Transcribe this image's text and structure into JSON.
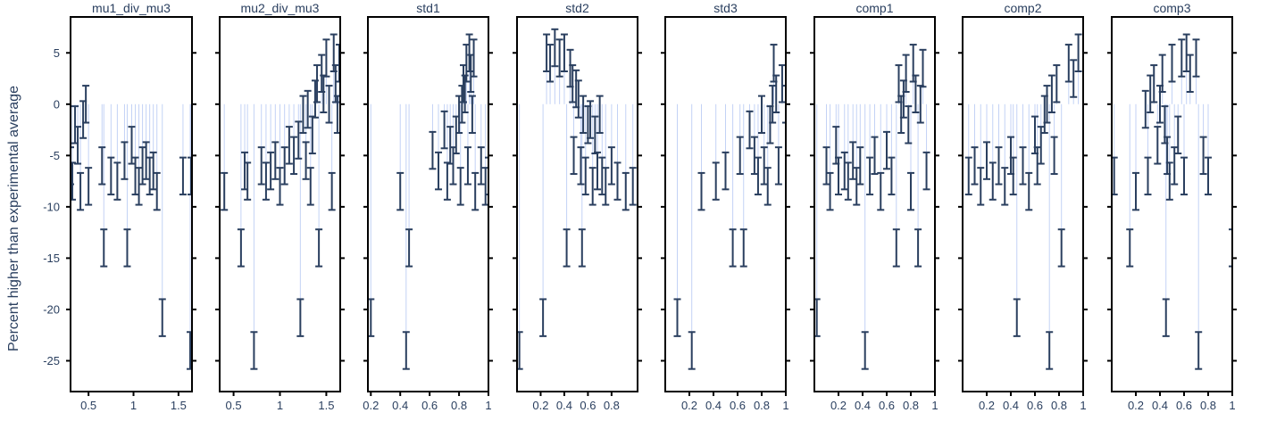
{
  "chart_data": {
    "type": "scatter",
    "ylabel": "Percent higher than experimental average",
    "ylim": [
      -28,
      8.5
    ],
    "yticks": [
      5,
      0,
      -5,
      -10,
      -15,
      -20,
      -25
    ],
    "colors": {
      "errorbar": "#2a3f5f",
      "stem": "#c3d2f5",
      "frame": "#000000"
    },
    "panels": [
      {
        "title": "mu1_div_mu3",
        "xlim": [
          0.3,
          1.65
        ],
        "xticks": [
          {
            "v": 0.5,
            "t": "0.5"
          },
          {
            "v": 1,
            "t": "1"
          },
          {
            "v": 1.5,
            "t": "1.5"
          }
        ],
        "points": [
          [
            0.3,
            -6
          ],
          [
            0.32,
            -7.5
          ],
          [
            0.35,
            -2
          ],
          [
            0.38,
            -4
          ],
          [
            0.41,
            -8.5
          ],
          [
            0.44,
            -1.5
          ],
          [
            0.47,
            0
          ],
          [
            0.5,
            -8
          ],
          [
            0.65,
            -6
          ],
          [
            0.67,
            -14
          ],
          [
            0.75,
            -7
          ],
          [
            0.82,
            -7.5
          ],
          [
            0.9,
            -5.5
          ],
          [
            0.93,
            -14
          ],
          [
            0.98,
            -4
          ],
          [
            1.02,
            -7
          ],
          [
            1.06,
            -8
          ],
          [
            1.1,
            -6
          ],
          [
            1.14,
            -5.5
          ],
          [
            1.18,
            -7
          ],
          [
            1.22,
            -6.5
          ],
          [
            1.26,
            -8.5
          ],
          [
            1.32,
            -20.8
          ],
          [
            1.55,
            -7
          ],
          [
            1.63,
            -24
          ],
          [
            1.64,
            -7
          ]
        ],
        "err": 1.8
      },
      {
        "title": "mu2_div_mu3",
        "xlim": [
          0.35,
          1.65
        ],
        "xticks": [
          {
            "v": 0.5,
            "t": "0.5"
          },
          {
            "v": 1,
            "t": "1"
          },
          {
            "v": 1.5,
            "t": "1.5"
          }
        ],
        "points": [
          [
            0.4,
            -8.5
          ],
          [
            0.58,
            -14
          ],
          [
            0.62,
            -6.5
          ],
          [
            0.65,
            -7.5
          ],
          [
            0.72,
            -24
          ],
          [
            0.8,
            -6
          ],
          [
            0.85,
            -7.5
          ],
          [
            0.9,
            -6.5
          ],
          [
            0.95,
            -5.5
          ],
          [
            1.0,
            -8
          ],
          [
            1.05,
            -6
          ],
          [
            1.1,
            -4
          ],
          [
            1.15,
            -5
          ],
          [
            1.2,
            -3.5
          ],
          [
            1.22,
            -20.8
          ],
          [
            1.25,
            -1
          ],
          [
            1.28,
            -5.5
          ],
          [
            1.3,
            -0.5
          ],
          [
            1.33,
            -8
          ],
          [
            1.35,
            -3
          ],
          [
            1.38,
            0.5
          ],
          [
            1.4,
            2
          ],
          [
            1.42,
            -14
          ],
          [
            1.45,
            3
          ],
          [
            1.47,
            1
          ],
          [
            1.5,
            4.5
          ],
          [
            1.53,
            0
          ],
          [
            1.56,
            -8.5
          ],
          [
            1.58,
            5
          ],
          [
            1.6,
            2
          ],
          [
            1.62,
            -1
          ],
          [
            1.64,
            4
          ]
        ],
        "err": 1.8
      },
      {
        "title": "std1",
        "xlim": [
          0.18,
          1.0
        ],
        "xticks": [
          {
            "v": 0.2,
            "t": "0.2"
          },
          {
            "v": 0.4,
            "t": "0.4"
          },
          {
            "v": 0.6,
            "t": "0.6"
          },
          {
            "v": 0.8,
            "t": "0.8"
          },
          {
            "v": 1,
            "t": "1"
          }
        ],
        "points": [
          [
            0.2,
            -20.8
          ],
          [
            0.4,
            -8.5
          ],
          [
            0.44,
            -24
          ],
          [
            0.46,
            -14
          ],
          [
            0.62,
            -4.5
          ],
          [
            0.66,
            -6.5
          ],
          [
            0.7,
            -2.5
          ],
          [
            0.72,
            -7.5
          ],
          [
            0.74,
            -4
          ],
          [
            0.76,
            -6
          ],
          [
            0.78,
            -3
          ],
          [
            0.8,
            -1
          ],
          [
            0.81,
            -8
          ],
          [
            0.82,
            0
          ],
          [
            0.83,
            2
          ],
          [
            0.84,
            1
          ],
          [
            0.85,
            4
          ],
          [
            0.86,
            -6
          ],
          [
            0.87,
            5
          ],
          [
            0.88,
            3
          ],
          [
            0.89,
            -1
          ],
          [
            0.9,
            4.5
          ],
          [
            0.91,
            -8.5
          ],
          [
            0.95,
            -6
          ],
          [
            0.98,
            -8
          ],
          [
            1.0,
            -7
          ]
        ],
        "err": 1.8
      },
      {
        "title": "std2",
        "xlim": [
          0.0,
          1.02
        ],
        "xticks": [
          {
            "v": 0.2,
            "t": "0.2"
          },
          {
            "v": 0.4,
            "t": "0.4"
          },
          {
            "v": 0.6,
            "t": "0.6"
          },
          {
            "v": 0.8,
            "t": "0.8"
          }
        ],
        "points": [
          [
            0.02,
            -24
          ],
          [
            0.22,
            -20.8
          ],
          [
            0.25,
            5
          ],
          [
            0.28,
            4
          ],
          [
            0.32,
            5.5
          ],
          [
            0.36,
            4.5
          ],
          [
            0.4,
            5
          ],
          [
            0.42,
            -14
          ],
          [
            0.45,
            3.5
          ],
          [
            0.47,
            2
          ],
          [
            0.48,
            -5
          ],
          [
            0.5,
            1.5
          ],
          [
            0.52,
            0.5
          ],
          [
            0.54,
            -6
          ],
          [
            0.55,
            -14
          ],
          [
            0.56,
            -1
          ],
          [
            0.58,
            -7
          ],
          [
            0.6,
            -2
          ],
          [
            0.62,
            -1.5
          ],
          [
            0.64,
            -8
          ],
          [
            0.66,
            -3
          ],
          [
            0.68,
            -6.5
          ],
          [
            0.7,
            -1
          ],
          [
            0.72,
            -7
          ],
          [
            0.75,
            -8
          ],
          [
            0.8,
            -6
          ],
          [
            0.85,
            -7.5
          ],
          [
            0.92,
            -8.5
          ],
          [
            0.98,
            -8
          ]
        ],
        "err": 1.8
      },
      {
        "title": "std3",
        "xlim": [
          0.0,
          1.0
        ],
        "xticks": [
          {
            "v": 0.2,
            "t": "0.2"
          },
          {
            "v": 0.4,
            "t": "0.4"
          },
          {
            "v": 0.6,
            "t": "0.6"
          },
          {
            "v": 0.8,
            "t": "0.8"
          },
          {
            "v": 1,
            "t": "1"
          }
        ],
        "points": [
          [
            0.1,
            -20.8
          ],
          [
            0.22,
            -24
          ],
          [
            0.3,
            -8.5
          ],
          [
            0.42,
            -7.5
          ],
          [
            0.5,
            -6.5
          ],
          [
            0.56,
            -14
          ],
          [
            0.62,
            -5
          ],
          [
            0.65,
            -14
          ],
          [
            0.7,
            -2.5
          ],
          [
            0.74,
            -5
          ],
          [
            0.77,
            -7
          ],
          [
            0.8,
            -1
          ],
          [
            0.82,
            -6
          ],
          [
            0.85,
            -8
          ],
          [
            0.87,
            -2
          ],
          [
            0.89,
            0
          ],
          [
            0.9,
            4
          ],
          [
            0.92,
            1
          ],
          [
            0.94,
            -6
          ],
          [
            0.97,
            2
          ],
          [
            1.0,
            0
          ]
        ],
        "err": 1.8
      },
      {
        "title": "comp1",
        "xlim": [
          0.0,
          1.0
        ],
        "xticks": [
          {
            "v": 0.2,
            "t": "0.2"
          },
          {
            "v": 0.4,
            "t": "0.4"
          },
          {
            "v": 0.6,
            "t": "0.6"
          },
          {
            "v": 0.8,
            "t": "0.8"
          },
          {
            "v": 1,
            "t": "1"
          }
        ],
        "points": [
          [
            0.02,
            -20.8
          ],
          [
            0.1,
            -6
          ],
          [
            0.13,
            -8.5
          ],
          [
            0.18,
            -4
          ],
          [
            0.2,
            -7
          ],
          [
            0.25,
            -6.5
          ],
          [
            0.28,
            -7.5
          ],
          [
            0.32,
            -5.5
          ],
          [
            0.35,
            -8
          ],
          [
            0.38,
            -6
          ],
          [
            0.42,
            -24
          ],
          [
            0.46,
            -7
          ],
          [
            0.5,
            -5
          ],
          [
            0.55,
            -8.5
          ],
          [
            0.6,
            -4.5
          ],
          [
            0.64,
            -7
          ],
          [
            0.68,
            -14
          ],
          [
            0.7,
            2
          ],
          [
            0.72,
            -1
          ],
          [
            0.74,
            0.5
          ],
          [
            0.76,
            3
          ],
          [
            0.78,
            -2
          ],
          [
            0.8,
            -8.5
          ],
          [
            0.82,
            4
          ],
          [
            0.84,
            1
          ],
          [
            0.86,
            -14
          ],
          [
            0.88,
            0
          ],
          [
            0.9,
            3.5
          ],
          [
            0.93,
            -6.5
          ]
        ],
        "err": 1.8
      },
      {
        "title": "comp2",
        "xlim": [
          0.0,
          1.0
        ],
        "xticks": [
          {
            "v": 0.2,
            "t": "0.2"
          },
          {
            "v": 0.4,
            "t": "0.4"
          },
          {
            "v": 0.6,
            "t": "0.6"
          },
          {
            "v": 0.8,
            "t": "0.8"
          },
          {
            "v": 1,
            "t": "1"
          }
        ],
        "points": [
          [
            0.05,
            -7
          ],
          [
            0.1,
            -6
          ],
          [
            0.15,
            -8
          ],
          [
            0.2,
            -5.5
          ],
          [
            0.25,
            -7.5
          ],
          [
            0.3,
            -6
          ],
          [
            0.35,
            -8
          ],
          [
            0.4,
            -5
          ],
          [
            0.42,
            -7
          ],
          [
            0.45,
            -20.8
          ],
          [
            0.5,
            -6
          ],
          [
            0.55,
            -8.5
          ],
          [
            0.6,
            -3
          ],
          [
            0.62,
            -6
          ],
          [
            0.65,
            -4
          ],
          [
            0.68,
            -1
          ],
          [
            0.7,
            0
          ],
          [
            0.72,
            -24
          ],
          [
            0.74,
            1
          ],
          [
            0.76,
            -5
          ],
          [
            0.78,
            2
          ],
          [
            0.82,
            -14
          ],
          [
            0.88,
            4
          ],
          [
            0.92,
            2.5
          ],
          [
            0.96,
            5
          ]
        ],
        "err": 1.8
      },
      {
        "title": "comp3",
        "xlim": [
          0.0,
          1.0
        ],
        "xticks": [
          {
            "v": 0.2,
            "t": "0.2"
          },
          {
            "v": 0.4,
            "t": "0.4"
          },
          {
            "v": 0.6,
            "t": "0.6"
          },
          {
            "v": 0.8,
            "t": "0.8"
          },
          {
            "v": 1,
            "t": "1"
          }
        ],
        "points": [
          [
            0.02,
            -7
          ],
          [
            0.15,
            -14
          ],
          [
            0.2,
            -8.5
          ],
          [
            0.28,
            -0.5
          ],
          [
            0.3,
            -7
          ],
          [
            0.32,
            1
          ],
          [
            0.35,
            2
          ],
          [
            0.38,
            -4
          ],
          [
            0.4,
            0
          ],
          [
            0.42,
            3
          ],
          [
            0.44,
            -2
          ],
          [
            0.45,
            -20.8
          ],
          [
            0.46,
            -5
          ],
          [
            0.48,
            -7.5
          ],
          [
            0.5,
            4
          ],
          [
            0.52,
            -6
          ],
          [
            0.55,
            -3
          ],
          [
            0.58,
            4.5
          ],
          [
            0.6,
            -7
          ],
          [
            0.62,
            5
          ],
          [
            0.65,
            3
          ],
          [
            0.7,
            4.5
          ],
          [
            0.72,
            -24
          ],
          [
            0.76,
            -5
          ],
          [
            0.8,
            -7
          ],
          [
            1.0,
            -14
          ]
        ],
        "err": 1.8
      }
    ]
  }
}
